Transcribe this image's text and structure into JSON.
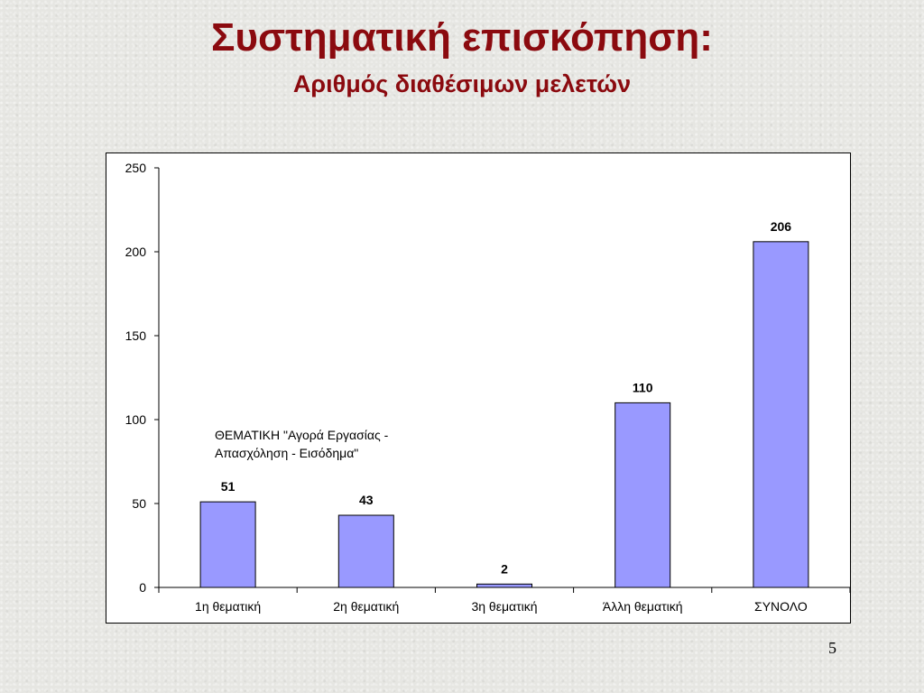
{
  "slide": {
    "title": "Συστηματική επισκόπηση:",
    "subtitle": "Αριθμός διαθέσιμων μελετών",
    "page_number": "5"
  },
  "chart_data": {
    "type": "bar",
    "categories": [
      "1η θεματική",
      "2η θεματική",
      "3η θεματική",
      "Άλλη θεματική",
      "ΣΥΝΟΛΟ"
    ],
    "series": [
      {
        "values": [
          51,
          43,
          2,
          110,
          206
        ],
        "color": "#9999ff"
      }
    ],
    "data_labels": [
      "51",
      "43",
      "2",
      "110",
      "206"
    ],
    "annotation_line1": "ΘΕΜΑΤΙΚΗ \"Αγορά Εργασίας -",
    "annotation_line2": "Απασχόληση - Εισόδημα\"",
    "ylim": [
      0,
      250
    ],
    "yticks": [
      0,
      50,
      100,
      150,
      200,
      250
    ],
    "grid": false,
    "legend": "none",
    "title": "",
    "xlabel": "",
    "ylabel": ""
  }
}
